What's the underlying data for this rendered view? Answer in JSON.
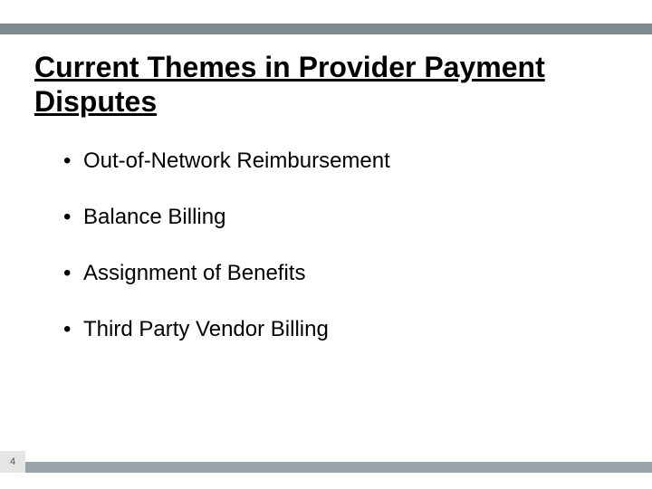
{
  "colors": {
    "top_bar": "#7f8a8f",
    "bottom_bar": "#9aa3a8",
    "page_box_bg": "#e6e6e6",
    "page_number_color": "#555555",
    "text": "#000000",
    "background": "#ffffff"
  },
  "title": "Current Themes in Provider Payment Disputes",
  "title_fontsize": 32,
  "bullet_fontsize": 24,
  "bullets": [
    "Out-of-Network Reimbursement",
    "Balance Billing",
    "Assignment of Benefits",
    "Third Party Vendor Billing"
  ],
  "page_number": "4"
}
